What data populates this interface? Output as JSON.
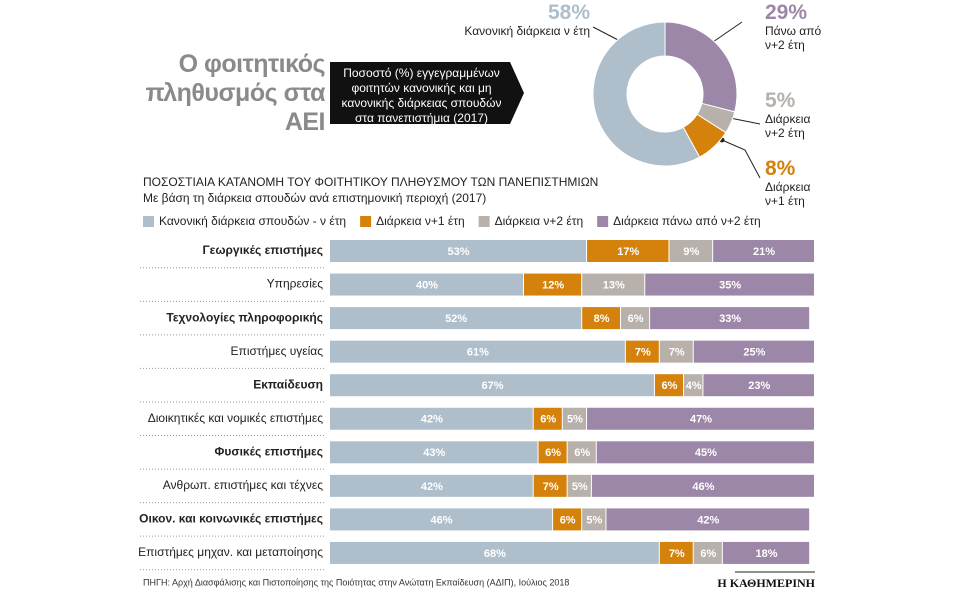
{
  "header": {
    "title": "Ο φοιτητικός πληθυσμός στα ΑΕΙ",
    "box": "Ποσοστό (%) εγγεγραμμένων φοιτητών κανονικής και μη κανονικής διάρκειας σπουδών στα πανεπιστήμια (2017)"
  },
  "chart_data": [
    {
      "type": "pie",
      "categories": [
        "Κανονική διάρκεια ν έτη",
        "Πάνω από ν+2 έτη",
        "Διάρκεια ν+2 έτη",
        "Διάρκεια ν+1 έτη"
      ],
      "values": [
        58,
        29,
        5,
        8
      ],
      "value_labels": [
        "58%",
        "29%",
        "5%",
        "8%"
      ],
      "colors": [
        "#aebfcb",
        "#9c87a9",
        "#b7b0ab",
        "#d4820b"
      ]
    },
    {
      "type": "stacked-bar-horizontal",
      "title": "ΠΟΣΟΣΤΙΑΙΑ ΚΑΤΑΝΟΜΗ ΤΟΥ ΦΟΙΤΗΤΙΚΟΥ ΠΛΗΘΥΣΜΟΥ ΤΩΝ ΠΑΝΕΠΙΣΤΗΜΙΩΝ",
      "subtitle": "Με βάση τη διάρκεια σπουδών ανά επιστημονική περιοχή (2017)",
      "categories": [
        "Γεωργικές επιστήμες",
        "Υπηρεσίες",
        "Τεχνολογίες πληροφορικής",
        "Επιστήμες υγείας",
        "Εκπαίδευση",
        "Διοικητικές και νομικές επιστήμες",
        "Φυσικές επιστήμες",
        "Ανθρωπ. επιστήμες και τέχνες",
        "Οικον. και κοινωνικές επιστήμες",
        "Επιστήμες μηχαν. και μεταποίησης"
      ],
      "series": [
        {
          "name": "Κανονική διάρκεια σπουδών - ν έτη",
          "color": "#aebfcb",
          "values": [
            53,
            40,
            52,
            61,
            67,
            42,
            43,
            42,
            46,
            68
          ],
          "value_labels": [
            "53%",
            "40%",
            "52%",
            "61%",
            "67%",
            "42%",
            "43%",
            "42%",
            "46%",
            "68%"
          ]
        },
        {
          "name": "Διάρκεια ν+1 έτη",
          "color": "#d4820b",
          "values": [
            17,
            12,
            8,
            7,
            6,
            6,
            6,
            7,
            6,
            7
          ],
          "value_labels": [
            "17%",
            "12%",
            "8%",
            "7%",
            "6%",
            "6%",
            "6%",
            "7%",
            "6%",
            "7%"
          ]
        },
        {
          "name": "Διάρκεια ν+2 έτη",
          "color": "#b7b0ab",
          "values": [
            9,
            13,
            6,
            7,
            4,
            5,
            6,
            5,
            5,
            6
          ],
          "value_labels": [
            "9%",
            "13%",
            "6%",
            "7%",
            "4%",
            "5%",
            "6%",
            "5%",
            "5%",
            "6%"
          ]
        },
        {
          "name": "Διάρκεια πάνω από ν+2 έτη",
          "color": "#9c87a9",
          "values": [
            21,
            35,
            33,
            25,
            23,
            47,
            45,
            46,
            42,
            18
          ],
          "value_labels": [
            "21%",
            "35%",
            "33%",
            "25%",
            "23%",
            "47%",
            "45%",
            "46%",
            "42%",
            "18%"
          ]
        }
      ]
    }
  ],
  "footer": {
    "source": "ΠΗΓΗ: Αρχή Διασφάλισης και Πιστοποίησης της Ποιότητας στην Ανώτατη Εκπαίδευση (ΑΔΙΠ), Ιούλιος 2018",
    "brand": "Η ΚΑΘΗΜΕΡΙΝΗ"
  }
}
